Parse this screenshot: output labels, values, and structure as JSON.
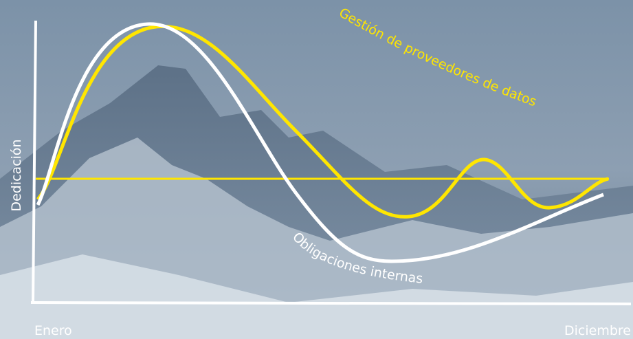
{
  "axis": {
    "y_label": "Dedicación",
    "x_start": "Enero",
    "x_end": "Diciembre"
  },
  "curves": [
    {
      "label": "Gestión de proveedores de datos"
    },
    {
      "label": "Obligaciones internas"
    }
  ]
}
